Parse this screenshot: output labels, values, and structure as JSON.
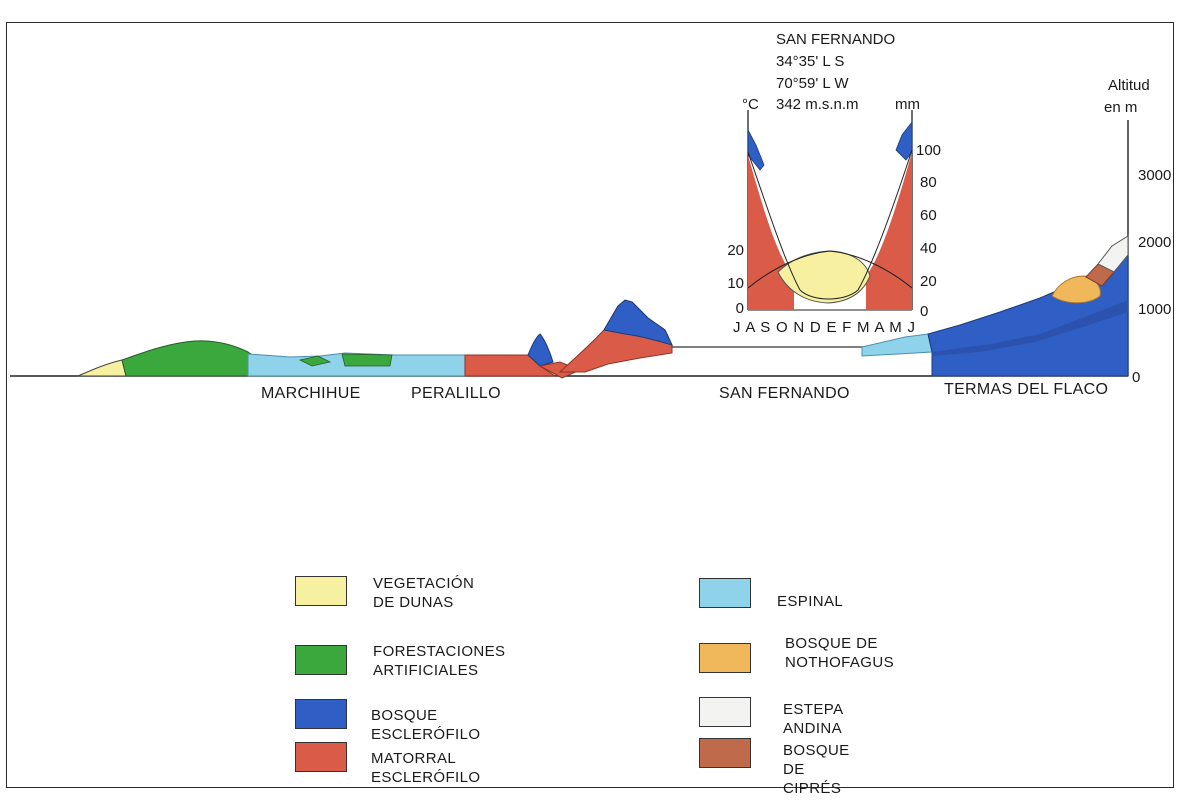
{
  "station": {
    "name": "SAN FERNANDO",
    "lat": "34°35' L S",
    "lon": "70°59' L W",
    "alt": "342 m.s.n.m",
    "temp_unit": "°C",
    "precip_unit": "mm",
    "months": "J A S O N D E F M A M J",
    "temp_ticks": [
      "20",
      "10",
      "0"
    ],
    "precip_ticks": [
      "100",
      "80",
      "60",
      "40",
      "20",
      "0"
    ]
  },
  "altitude_axis": {
    "title_line1": "Altitud",
    "title_line2": "en m",
    "ticks": [
      "3000",
      "2000",
      "1000",
      "0"
    ]
  },
  "places": [
    "MARCHIHUE",
    "PERALILLO",
    "SAN FERNANDO",
    "TERMAS DEL FLACO"
  ],
  "legend": [
    {
      "lines": [
        "VEGETACIÓN",
        "DE DUNAS"
      ],
      "color": "#f6f0a0"
    },
    {
      "lines": [
        "FORESTACIONES",
        "ARTIFICIALES"
      ],
      "color": "#3aa83c"
    },
    {
      "lines": [
        "BOSQUE ESCLERÓFILO"
      ],
      "color": "#2f5fc4"
    },
    {
      "lines": [
        "MATORRAL ESCLERÓFILO"
      ],
      "color": "#d95b48"
    },
    {
      "lines": [
        "ESPINAL"
      ],
      "color": "#8fd3ea"
    },
    {
      "lines": [
        "BOSQUE DE",
        "NOTHOFAGUS"
      ],
      "color": "#f0b85a"
    },
    {
      "lines": [
        "ESTEPA ANDINA"
      ],
      "color": "#f3f3f1"
    },
    {
      "lines": [
        "BOSQUE DE CIPRÉS"
      ],
      "color": "#c06a4c"
    }
  ]
}
